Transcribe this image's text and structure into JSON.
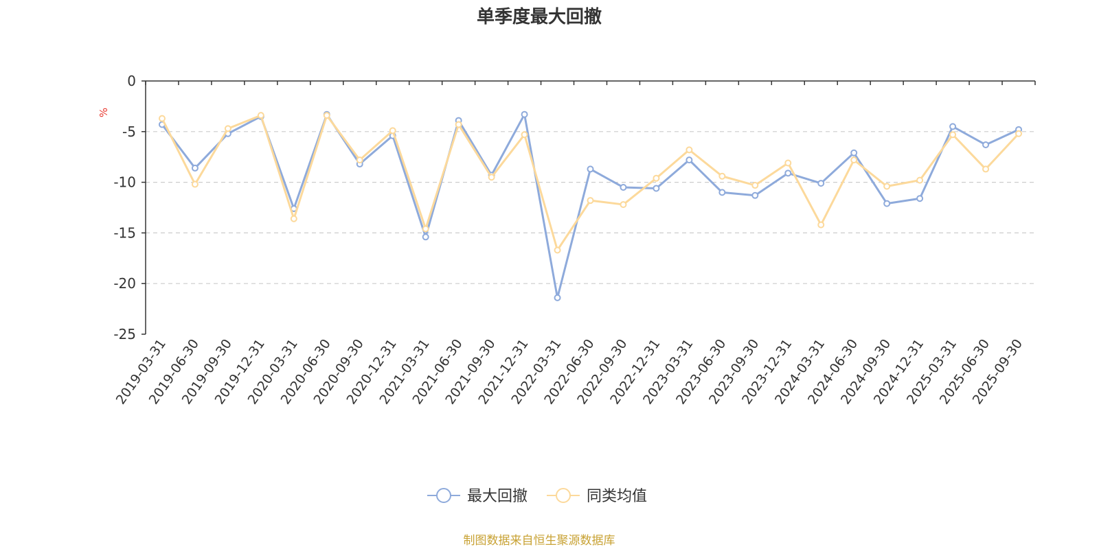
{
  "chart_data": {
    "type": "line",
    "title": "单季度最大回撤",
    "ylabel": "%",
    "ylim": [
      -25,
      0
    ],
    "yticks": [
      0,
      -5,
      -10,
      -15,
      -20,
      -25
    ],
    "grid": true,
    "legend_position": "bottom-center",
    "categories": [
      "2019-03-31",
      "2019-06-30",
      "2019-09-30",
      "2019-12-31",
      "2020-03-31",
      "2020-06-30",
      "2020-09-30",
      "2020-12-31",
      "2021-03-31",
      "2021-06-30",
      "2021-09-30",
      "2021-12-31",
      "2022-03-31",
      "2022-06-30",
      "2022-09-30",
      "2022-12-31",
      "2023-03-31",
      "2023-06-30",
      "2023-09-30",
      "2023-12-31",
      "2024-03-31",
      "2024-06-30",
      "2024-09-30",
      "2024-12-31",
      "2025-03-31",
      "2025-06-30",
      "2025-09-30"
    ],
    "series": [
      {
        "name": "最大回撤",
        "color": "#8eaadb",
        "values": [
          -4.3,
          -8.6,
          -5.2,
          -3.5,
          -12.6,
          -3.3,
          -8.2,
          -5.4,
          -15.4,
          -3.9,
          -9.3,
          -3.3,
          -21.4,
          -8.7,
          -10.5,
          -10.6,
          -7.8,
          -11.0,
          -11.3,
          -9.1,
          -10.1,
          -7.1,
          -12.1,
          -11.6,
          -4.5,
          -6.3,
          -4.8
        ]
      },
      {
        "name": "同类均值",
        "color": "#fcd99b",
        "values": [
          -3.7,
          -10.2,
          -4.7,
          -3.4,
          -13.6,
          -3.4,
          -7.8,
          -4.9,
          -14.6,
          -4.3,
          -9.5,
          -5.3,
          -16.7,
          -11.8,
          -12.2,
          -9.6,
          -6.8,
          -9.4,
          -10.3,
          -8.1,
          -14.2,
          -7.8,
          -10.4,
          -9.8,
          -5.3,
          -8.7,
          -5.2
        ]
      }
    ]
  },
  "footer": {
    "source": "制图数据来自恒生聚源数据库"
  },
  "colors": {
    "title": "#333333",
    "axis": "#333333",
    "grid": "#cccccc",
    "unit": "#e8382f",
    "source": "#c8a234"
  }
}
